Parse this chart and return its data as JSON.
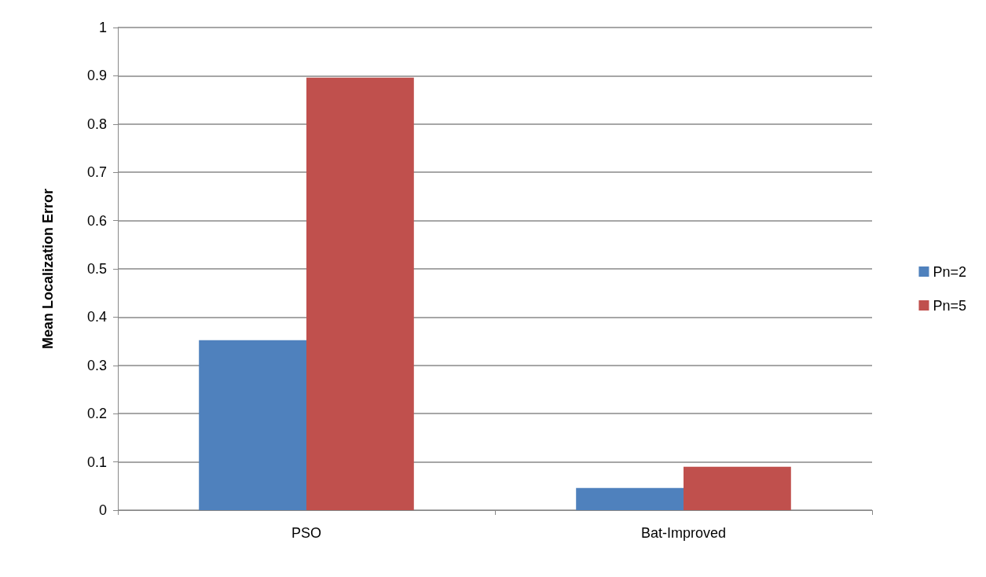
{
  "chart_data": {
    "type": "bar",
    "ylabel": "Mean Localization Error",
    "categories": [
      "PSO",
      "Bat-Improved"
    ],
    "series": [
      {
        "name": "Pn=2",
        "color": "#4f81bd",
        "values": [
          0.352,
          0.046
        ]
      },
      {
        "name": "Pn=5",
        "color": "#c0504d",
        "values": [
          0.896,
          0.09
        ]
      }
    ],
    "ylim": [
      0,
      1
    ],
    "yticks": [
      0,
      0.1,
      0.2,
      0.3,
      0.4,
      0.5,
      0.6,
      0.7,
      0.8,
      0.9,
      1
    ],
    "grid": "y",
    "legend": "right"
  }
}
